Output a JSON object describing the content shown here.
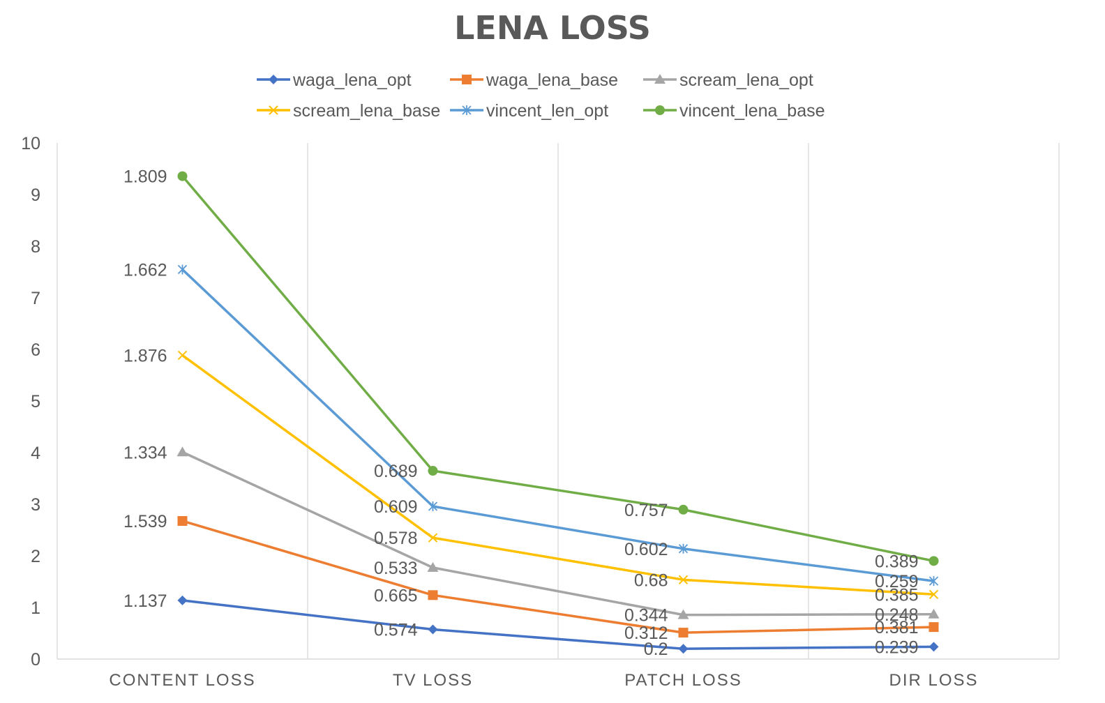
{
  "chart_data": {
    "type": "line",
    "title": "LENA LOSS",
    "categories": [
      "CONTENT LOSS",
      "TV LOSS",
      "PATCH LOSS",
      "DIR LOSS"
    ],
    "ylim": [
      0,
      10
    ],
    "yticks": [
      "0",
      "1",
      "2",
      "3",
      "4",
      "5",
      "6",
      "7",
      "8",
      "9",
      "10"
    ],
    "xlabel": "",
    "ylabel": "",
    "grid": "vertical",
    "legend_position": "top",
    "series": [
      {
        "name": "waga_lena_opt",
        "color": "#4472C4",
        "marker": "diamond",
        "values": [
          1.137,
          0.574,
          0.2,
          0.239
        ],
        "labels": [
          "1.137",
          "0.574",
          "0.2",
          "0.239"
        ]
      },
      {
        "name": "waga_lena_base",
        "color": "#ED7D31",
        "marker": "square",
        "values": [
          2.676,
          1.239,
          0.512,
          0.62
        ],
        "labels": [
          "1.539",
          "0.665",
          "0.312",
          "0.381"
        ]
      },
      {
        "name": "scream_lena_opt",
        "color": "#A5A5A5",
        "marker": "triangle",
        "values": [
          4.01,
          1.772,
          0.856,
          0.868
        ],
        "labels": [
          "1.334",
          "0.533",
          "0.344",
          "0.248"
        ]
      },
      {
        "name": "scream_lena_base",
        "color": "#FFC000",
        "marker": "x",
        "values": [
          5.886,
          2.35,
          1.536,
          1.253
        ],
        "labels": [
          "1.876",
          "0.578",
          "0.68",
          "0.385"
        ]
      },
      {
        "name": "vincent_len_opt",
        "color": "#5B9BD5",
        "marker": "star",
        "values": [
          7.548,
          2.959,
          2.138,
          1.512
        ],
        "labels": [
          "1.662",
          "0.609",
          "0.602",
          "0.259"
        ]
      },
      {
        "name": "vincent_lena_base",
        "color": "#70AD47",
        "marker": "circle",
        "values": [
          9.357,
          3.648,
          2.895,
          1.901
        ],
        "labels": [
          "1.809",
          "0.689",
          "0.757",
          "0.389"
        ]
      }
    ]
  }
}
